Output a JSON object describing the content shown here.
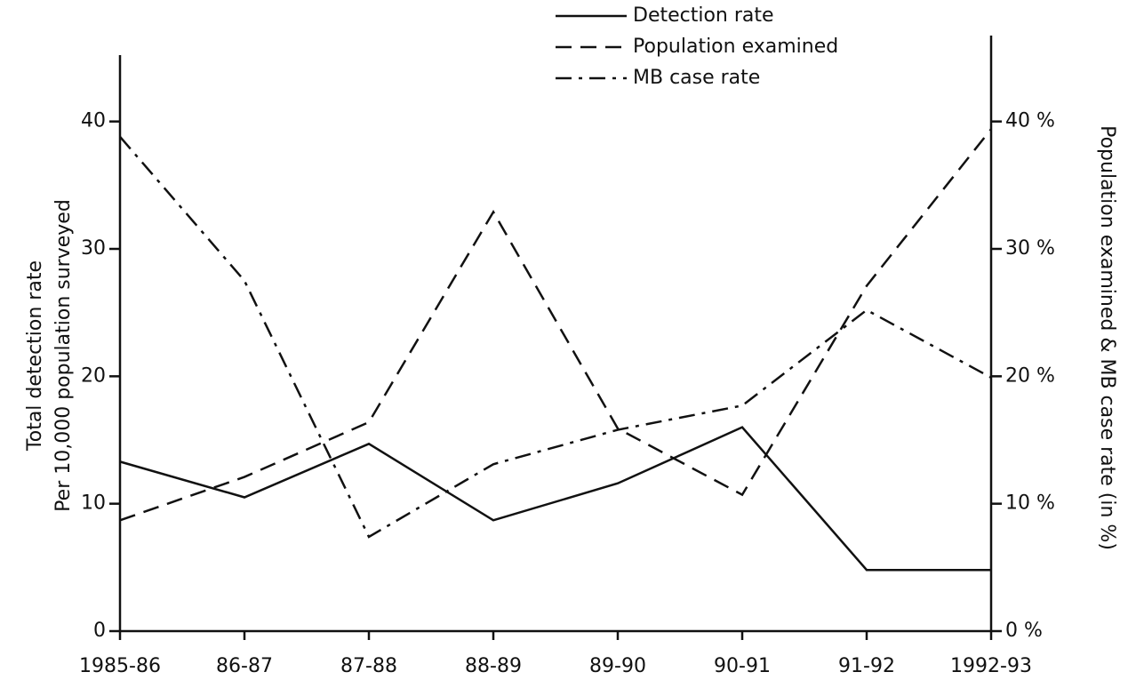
{
  "chart_data": {
    "type": "line",
    "categories": [
      "1985-86",
      "86-87",
      "87-88",
      "88-89",
      "89-90",
      "90-91",
      "91-92",
      "1992-93"
    ],
    "ylabel": [
      "Total detection rate",
      "Per 10,000 population surveyed"
    ],
    "y2label": "Population examined & MB case rate (in %)",
    "ylim": [
      0,
      45
    ],
    "yticks": [
      0,
      10,
      20,
      30,
      40
    ],
    "y2lim": [
      0,
      45
    ],
    "y2ticks": [
      {
        "value": 0,
        "label": "0 %"
      },
      {
        "value": 10,
        "label": "10 %"
      },
      {
        "value": 20,
        "label": "20 %"
      },
      {
        "value": 30,
        "label": "30 %"
      },
      {
        "value": 40,
        "label": "40 %"
      }
    ],
    "grid": false,
    "series": [
      {
        "name": "Detection rate",
        "color": "#111111",
        "dash": "solid",
        "values": [
          13.3,
          10.5,
          14.7,
          8.7,
          11.6,
          16.0,
          4.8,
          4.8
        ]
      },
      {
        "name": "Population examined",
        "color": "#111111",
        "dash": "dashed",
        "axis": "y2",
        "values": [
          8.7,
          12.1,
          16.4,
          32.9,
          15.9,
          10.7,
          27.1,
          39.4
        ]
      },
      {
        "name": "MB case rate",
        "color": "#111111",
        "dash": "dashdot",
        "axis": "y2",
        "values": [
          38.8,
          27.5,
          7.4,
          13.1,
          15.8,
          17.7,
          25.2,
          19.9
        ]
      }
    ]
  }
}
